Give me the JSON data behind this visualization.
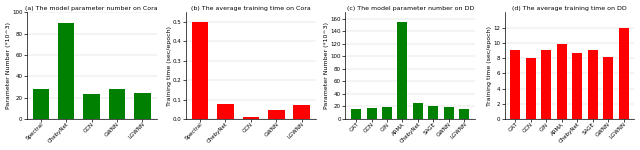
{
  "subplot_a": {
    "title": "(a) The model parameter number on Cora",
    "ylabel": "Parameter Number (*10^3)",
    "categories": [
      "Spectral",
      "ChebyNet",
      "GCN",
      "GWNN",
      "LGWNN"
    ],
    "values": [
      28,
      90,
      23,
      28,
      24
    ],
    "bar_color": "#008000",
    "ylim": [
      0,
      100
    ],
    "yticks": [
      0,
      20,
      40,
      60,
      80,
      100
    ]
  },
  "subplot_b": {
    "title": "(b) The average training time on Cora",
    "ylabel": "Training time (sec/epoch)",
    "categories": [
      "Spectral",
      "ChebyNet",
      "GCN",
      "GWNN",
      "LGWNN"
    ],
    "values": [
      0.5,
      0.075,
      0.012,
      0.045,
      0.07
    ],
    "bar_color": "#ff0000",
    "ylim": [
      0,
      0.55
    ],
    "yticks": [
      0.0,
      0.1,
      0.2,
      0.3,
      0.4,
      0.5
    ]
  },
  "subplot_c": {
    "title": "(c) The model parameter number on DD",
    "ylabel": "Parameter Number (*10^3)",
    "categories": [
      "GAT",
      "GCN",
      "GIN",
      "ARMA",
      "ChebyNet",
      "SAGE",
      "GWNN",
      "LGWNN"
    ],
    "values": [
      16,
      17,
      19,
      155,
      25,
      21,
      19,
      16
    ],
    "bar_color": "#008000",
    "ylim": [
      0,
      170
    ],
    "yticks": [
      0,
      20,
      40,
      60,
      80,
      100,
      120,
      140,
      160
    ]
  },
  "subplot_d": {
    "title": "(d) The average training time on DD",
    "ylabel": "Training time (sec/epoch)",
    "categories": [
      "GAT",
      "GCN",
      "GIN",
      "ARMA",
      "ChebyNet",
      "SAGE",
      "GWNN",
      "LGWNN"
    ],
    "values": [
      9.1,
      8.0,
      9.0,
      9.8,
      8.7,
      9.0,
      8.2,
      12.0
    ],
    "bar_color": "#ff0000",
    "ylim": [
      0,
      14
    ],
    "yticks": [
      0,
      2,
      4,
      6,
      8,
      10,
      12
    ]
  },
  "background_color": "#ffffff",
  "tick_fontsize": 4.0,
  "label_fontsize": 4.5,
  "title_fontsize": 4.5
}
